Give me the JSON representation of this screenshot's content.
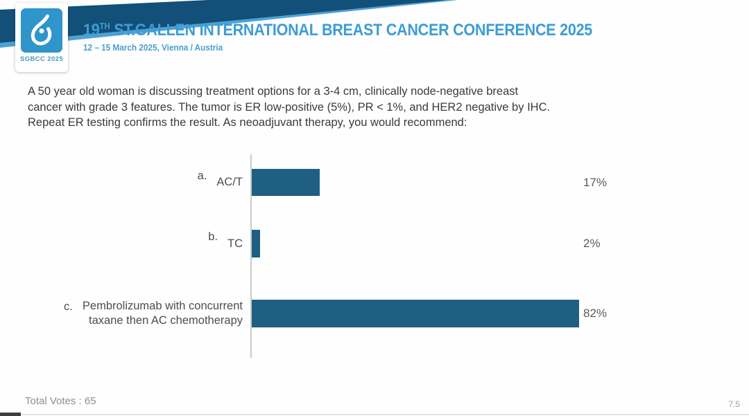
{
  "header": {
    "logo": {
      "icon": "breast-drop-icon",
      "text": "SGBCC 2025"
    },
    "title_number": "19",
    "title_sup": "TH",
    "title_rest": " ST.GALLEN INTERNATIONAL BREAST CANCER CONFERENCE 2025",
    "subtitle": "12 – 15 March 2025, Vienna / Austria",
    "banner_color": "#124f79",
    "accent_color": "#4aa3d4",
    "title_color": "#3d9dd3"
  },
  "question": {
    "lines": [
      "A 50 year old woman is discussing treatment options for a 3-4 cm, clinically node-negative breast",
      "cancer with grade 3 features. The tumor is ER low-positive (5%), PR < 1%, and HER2 negative by IHC.",
      "Repeat ER testing confirms the result. As neoadjuvant therapy, you would recommend:"
    ]
  },
  "chart_data": {
    "type": "bar",
    "orientation": "horizontal",
    "bar_color": "#1e5f82",
    "xlim": [
      0,
      100
    ],
    "value_suffix": "%",
    "categories": [
      "a. AC/T",
      "b. TC",
      "c. Pembrolizumab with concurrent taxane then AC chemotherapy"
    ],
    "values": [
      17,
      2,
      82
    ],
    "options": [
      {
        "letter": "a.",
        "label_lines": [
          "AC/T"
        ],
        "pct": 17
      },
      {
        "letter": "b.",
        "label_lines": [
          "TC"
        ],
        "pct": 2
      },
      {
        "letter": "c.",
        "label_lines": [
          "Pembrolizumab with concurrent",
          "taxane then AC chemotherapy"
        ],
        "pct": 82
      }
    ]
  },
  "footer": {
    "total_votes": "Total Votes : 65",
    "page_number": "7.5"
  }
}
